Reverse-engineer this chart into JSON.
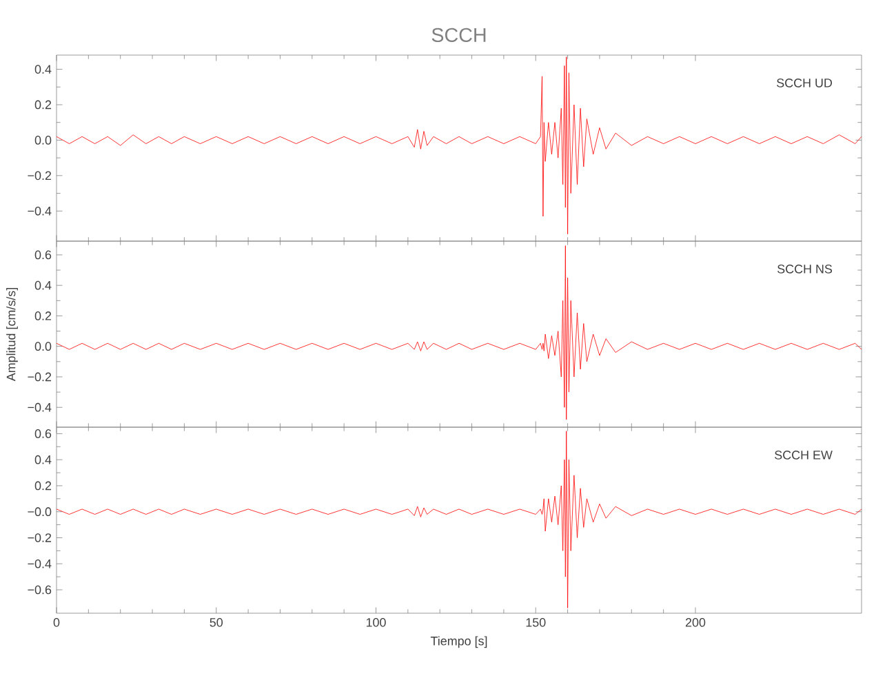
{
  "chart_data": [
    {
      "type": "line",
      "title": "SCCH",
      "annotations": [
        "SCCH UD"
      ],
      "tick_labels": "y",
      "xlim": [
        0,
        252
      ],
      "xticks": [
        0,
        50,
        100,
        150,
        200
      ],
      "ylim": [
        -0.57,
        0.48
      ],
      "yticks": [
        {
          "value": -0.4,
          "label": "−0.4"
        },
        {
          "value": -0.2,
          "label": "−0.2"
        },
        {
          "value": 0,
          "label": "0.0"
        },
        {
          "value": 0.2,
          "label": "0.2"
        },
        {
          "value": 0.4,
          "label": "0.4"
        }
      ],
      "color": "#ff0000",
      "x": [
        0,
        4,
        8,
        12,
        16,
        20,
        24,
        28,
        32,
        36,
        40,
        45,
        50,
        55,
        60,
        65,
        70,
        75,
        80,
        85,
        90,
        95,
        100,
        105,
        110,
        112,
        113,
        114,
        115,
        116,
        118,
        122,
        126,
        130,
        135,
        140,
        145,
        150,
        151.5,
        152,
        152.3,
        152.6,
        153,
        154,
        155,
        156,
        157,
        158,
        158.5,
        159,
        159.3,
        159.6,
        160,
        160.4,
        161,
        162,
        163,
        164,
        165,
        166,
        168,
        170,
        172,
        175,
        180,
        185,
        190,
        195,
        200,
        205,
        210,
        215,
        220,
        225,
        230,
        235,
        240,
        245,
        250,
        252
      ],
      "values": [
        0.02,
        -0.02,
        0.02,
        -0.02,
        0.02,
        -0.03,
        0.03,
        -0.02,
        0.02,
        -0.02,
        0.02,
        -0.02,
        0.02,
        -0.02,
        0.02,
        -0.02,
        0.02,
        -0.02,
        0.02,
        -0.02,
        0.02,
        -0.02,
        0.02,
        -0.02,
        0.02,
        -0.04,
        0.06,
        -0.05,
        0.05,
        -0.03,
        0.02,
        -0.02,
        0.02,
        -0.02,
        0.02,
        -0.02,
        0.02,
        -0.02,
        0.02,
        0.36,
        -0.43,
        0.1,
        -0.12,
        0.1,
        -0.08,
        0.1,
        -0.1,
        0.18,
        -0.25,
        0.42,
        -0.38,
        0.47,
        -0.53,
        0.38,
        -0.3,
        0.2,
        -0.25,
        0.18,
        -0.15,
        0.12,
        -0.08,
        0.07,
        -0.05,
        0.04,
        -0.03,
        0.02,
        -0.02,
        0.02,
        -0.02,
        0.02,
        -0.02,
        0.02,
        -0.02,
        0.02,
        -0.02,
        0.02,
        -0.02,
        0.03,
        -0.02,
        0.02
      ]
    },
    {
      "type": "line",
      "ylabel": "Amplitud [cm/s/s]",
      "annotations": [
        "SCCH NS"
      ],
      "tick_labels": "y",
      "xlim": [
        0,
        252
      ],
      "xticks": [
        0,
        50,
        100,
        150,
        200
      ],
      "ylim": [
        -0.53,
        0.69
      ],
      "yticks": [
        {
          "value": -0.4,
          "label": "−0.4"
        },
        {
          "value": -0.2,
          "label": "−0.2"
        },
        {
          "value": 0,
          "label": "0.0"
        },
        {
          "value": 0.2,
          "label": "0.2"
        },
        {
          "value": 0.4,
          "label": "0.4"
        },
        {
          "value": 0.6,
          "label": "0.6"
        }
      ],
      "color": "#ff0000",
      "x": [
        0,
        4,
        8,
        12,
        16,
        20,
        24,
        28,
        32,
        36,
        40,
        45,
        50,
        55,
        60,
        65,
        70,
        75,
        80,
        85,
        90,
        95,
        100,
        105,
        110,
        112,
        113,
        114,
        115,
        116,
        118,
        122,
        126,
        130,
        135,
        140,
        145,
        150,
        151.5,
        152,
        152.3,
        152.6,
        153,
        154,
        155,
        156,
        157,
        158,
        158.5,
        159,
        159.3,
        159.6,
        160,
        160.4,
        161,
        162,
        163,
        164,
        165,
        166,
        168,
        170,
        172,
        175,
        180,
        185,
        190,
        195,
        200,
        205,
        210,
        215,
        220,
        225,
        230,
        235,
        240,
        245,
        250,
        252
      ],
      "values": [
        0.02,
        -0.02,
        0.02,
        -0.02,
        0.02,
        -0.02,
        0.02,
        -0.02,
        0.02,
        -0.02,
        0.02,
        -0.02,
        0.02,
        -0.02,
        0.02,
        -0.02,
        0.02,
        -0.02,
        0.02,
        -0.02,
        0.02,
        -0.02,
        0.02,
        -0.02,
        0.02,
        -0.02,
        0.03,
        -0.03,
        0.03,
        -0.02,
        0.02,
        -0.02,
        0.02,
        -0.02,
        0.02,
        -0.02,
        0.02,
        -0.02,
        0.02,
        -0.02,
        0.02,
        -0.03,
        0.08,
        -0.08,
        0.07,
        -0.06,
        0.1,
        -0.2,
        0.3,
        -0.4,
        0.66,
        -0.48,
        0.45,
        -0.3,
        0.3,
        -0.2,
        0.22,
        -0.15,
        0.15,
        -0.1,
        0.08,
        -0.06,
        0.05,
        -0.04,
        0.03,
        -0.02,
        0.02,
        -0.02,
        0.02,
        -0.02,
        0.02,
        -0.02,
        0.02,
        -0.02,
        0.02,
        -0.02,
        0.02,
        -0.02,
        0.02,
        -0.02
      ]
    },
    {
      "type": "line",
      "xlabel": "Tiempo [s]",
      "annotations": [
        "SCCH EW"
      ],
      "xlim": [
        0,
        252
      ],
      "xticks": [
        0,
        50,
        100,
        150,
        200
      ],
      "ylim": [
        -0.78,
        0.65
      ],
      "yticks": [
        {
          "value": -0.6,
          "label": "−0.6"
        },
        {
          "value": -0.4,
          "label": "−0.4"
        },
        {
          "value": -0.2,
          "label": "−0.2"
        },
        {
          "value": 0,
          "label": "−0.0"
        },
        {
          "value": 0.2,
          "label": "0.2"
        },
        {
          "value": 0.4,
          "label": "0.4"
        },
        {
          "value": 0.6,
          "label": "0.6"
        }
      ],
      "color": "#ff0000",
      "x": [
        0,
        4,
        8,
        12,
        16,
        20,
        24,
        28,
        32,
        36,
        40,
        45,
        50,
        55,
        60,
        65,
        70,
        75,
        80,
        85,
        90,
        95,
        100,
        105,
        110,
        112,
        113,
        114,
        115,
        116,
        118,
        122,
        126,
        130,
        135,
        140,
        145,
        150,
        151.5,
        152,
        152.3,
        152.6,
        153,
        154,
        155,
        156,
        157,
        158,
        158.5,
        159,
        159.3,
        159.6,
        160,
        160.4,
        161,
        162,
        163,
        164,
        165,
        166,
        168,
        170,
        172,
        175,
        180,
        185,
        190,
        195,
        200,
        205,
        210,
        215,
        220,
        225,
        230,
        235,
        240,
        245,
        250,
        252
      ],
      "values": [
        0.02,
        -0.02,
        0.02,
        -0.02,
        0.02,
        -0.02,
        0.02,
        -0.02,
        0.02,
        -0.02,
        0.02,
        -0.02,
        0.02,
        -0.02,
        0.02,
        -0.02,
        0.02,
        -0.02,
        0.02,
        -0.02,
        0.02,
        -0.02,
        0.02,
        -0.02,
        0.02,
        -0.03,
        0.04,
        -0.04,
        0.03,
        -0.02,
        0.02,
        -0.02,
        0.02,
        -0.02,
        0.02,
        -0.02,
        0.02,
        -0.02,
        0.02,
        -0.02,
        0.02,
        0.1,
        -0.15,
        0.1,
        -0.08,
        0.12,
        -0.1,
        0.2,
        -0.3,
        0.4,
        -0.5,
        0.62,
        -0.74,
        0.4,
        -0.3,
        0.28,
        -0.2,
        0.18,
        -0.12,
        0.1,
        -0.08,
        0.06,
        -0.05,
        0.04,
        -0.03,
        0.02,
        -0.02,
        0.02,
        -0.02,
        0.02,
        -0.02,
        0.02,
        -0.02,
        0.02,
        -0.02,
        0.02,
        -0.02,
        0.02,
        -0.02,
        0.02
      ]
    }
  ]
}
